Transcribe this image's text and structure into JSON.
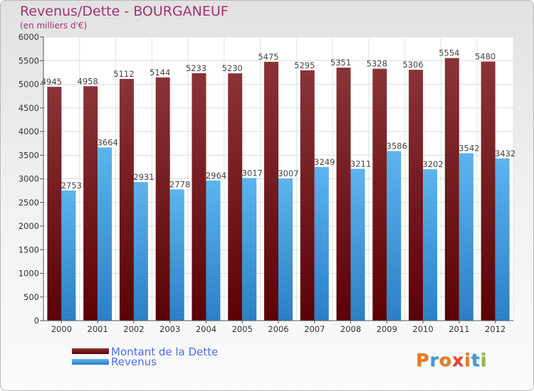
{
  "title": "Revenus/Dette - BOURGANEUF",
  "subtitle": "(en milliers d'€)",
  "legend": [
    {
      "label": "Montant de la Dette",
      "color": "#6e1416"
    },
    {
      "label": "Revenus",
      "color": "#4a9fe0"
    }
  ],
  "logo": {
    "text": "Proxiti",
    "colors": [
      "#e87a22",
      "#3f9ad6",
      "#e87a22",
      "#e8433a",
      "#e87a22",
      "#3f9ad6",
      "#84c340"
    ]
  },
  "chart_data": {
    "type": "bar",
    "title": "Revenus/Dette - BOURGANEUF",
    "subtitle": "(en milliers d'€)",
    "categories": [
      "2000",
      "2001",
      "2002",
      "2003",
      "2004",
      "2005",
      "2006",
      "2007",
      "2008",
      "2009",
      "2010",
      "2011",
      "2012"
    ],
    "series": [
      {
        "name": "Montant de la Dette",
        "values": [
          4945,
          4958,
          5112,
          5144,
          5233,
          5230,
          5475,
          5295,
          5351,
          5328,
          5306,
          5554,
          5480
        ],
        "color": "#6e1416"
      },
      {
        "name": "Revenus",
        "values": [
          2753,
          3664,
          2931,
          2778,
          2964,
          3017,
          3007,
          3249,
          3211,
          3586,
          3202,
          3542,
          3432
        ],
        "color": "#4a9fe0"
      }
    ],
    "yticks": [
      0,
      500,
      1000,
      1500,
      2000,
      2500,
      3000,
      3500,
      4000,
      4500,
      5000,
      5500,
      6000
    ],
    "ylim": [
      0,
      6000
    ],
    "grid": true,
    "legend_position": "bottom-left"
  }
}
